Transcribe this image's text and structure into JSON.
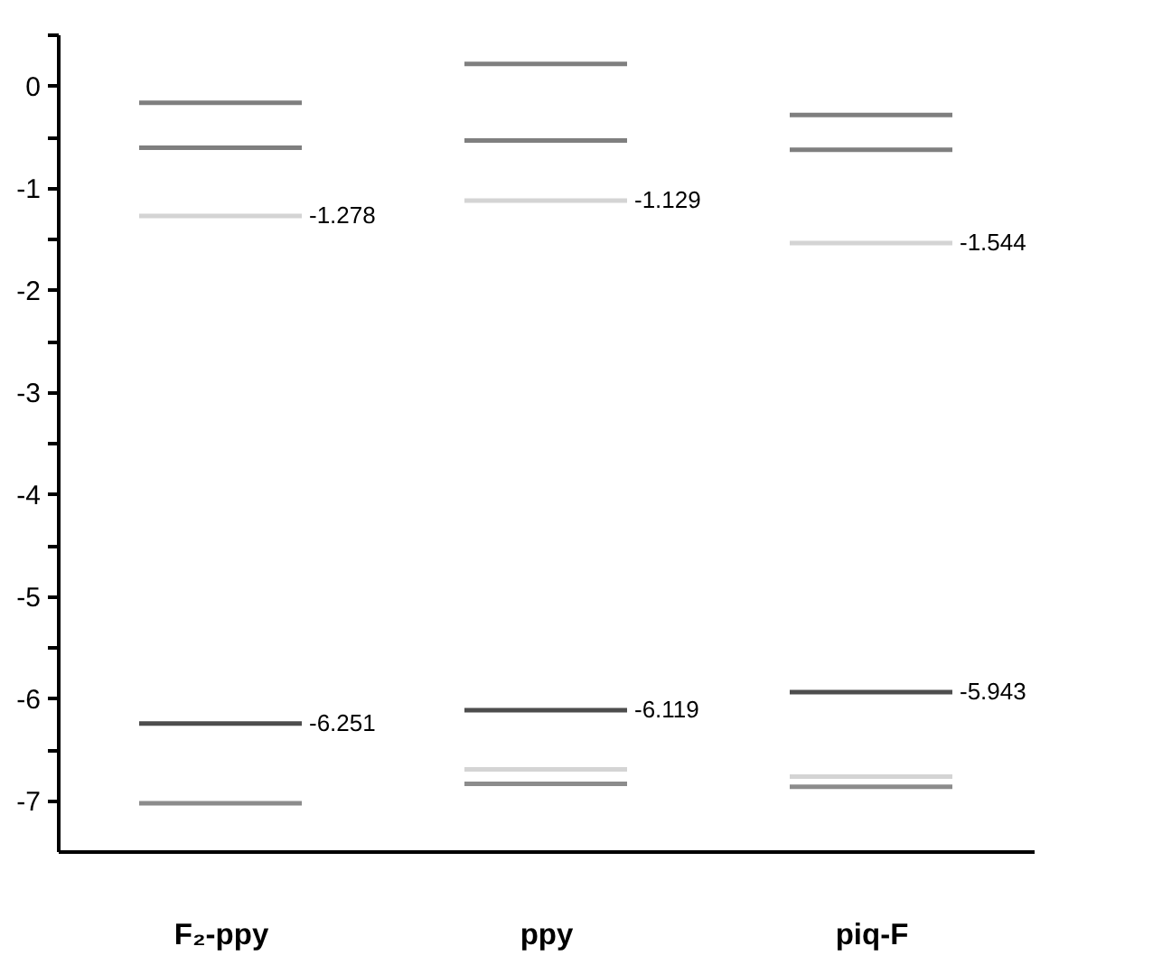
{
  "chart_data": {
    "type": "line",
    "categories": [
      null,
      "F₂-ppy",
      null,
      null,
      null,
      "ppy",
      null,
      null,
      null,
      "piq-F",
      null
    ],
    "series": [
      {
        "color": "#7f7f7f",
        "values": [
          -0.17,
          -0.17,
          -0.17,
          null,
          null,
          null,
          null,
          null,
          null,
          null,
          null
        ]
      },
      {
        "color": "#7f7f7f",
        "values": [
          -0.61,
          -0.61,
          -0.61,
          null,
          null,
          null,
          null,
          null,
          null,
          null,
          null
        ]
      },
      {
        "color": "#d4d4d4",
        "values": [
          -1.278,
          -1.278,
          -1.278,
          null,
          null,
          null,
          null,
          null,
          null,
          null,
          null
        ],
        "value_labels": [
          null,
          null,
          "-1.278",
          null,
          null,
          null,
          null,
          null,
          null,
          null,
          null
        ]
      },
      {
        "color": "#4d4d4d",
        "values": [
          -6.251,
          -6.251,
          -6.251,
          null,
          null,
          null,
          null,
          null,
          null,
          null,
          null
        ],
        "value_labels": [
          null,
          null,
          "-6.251",
          null,
          null,
          null,
          null,
          null,
          null,
          null,
          null
        ]
      },
      {
        "color": "#8c8c8c",
        "values": [
          -7.03,
          -7.03,
          -7.03,
          null,
          null,
          null,
          null,
          null,
          null,
          null,
          null
        ]
      },
      {
        "color": "#7f7f7f",
        "values": [
          null,
          null,
          null,
          null,
          0.21,
          0.21,
          0.21,
          null,
          null,
          null,
          null
        ]
      },
      {
        "color": "#7f7f7f",
        "values": [
          null,
          null,
          null,
          null,
          -0.54,
          -0.54,
          -0.54,
          null,
          null,
          null,
          null
        ]
      },
      {
        "color": "#d4d4d4",
        "values": [
          null,
          null,
          null,
          null,
          -1.129,
          -1.129,
          -1.129,
          null,
          null,
          null,
          null
        ],
        "value_labels": [
          null,
          null,
          null,
          null,
          null,
          null,
          "-1.129",
          null,
          null,
          null,
          null
        ]
      },
      {
        "color": "#4d4d4d",
        "values": [
          null,
          null,
          null,
          null,
          -6.119,
          -6.119,
          -6.119,
          null,
          null,
          null,
          null
        ],
        "value_labels": [
          null,
          null,
          null,
          null,
          null,
          null,
          "-6.119",
          null,
          null,
          null,
          null
        ]
      },
      {
        "color": "#d4d4d4",
        "values": [
          null,
          null,
          null,
          null,
          -6.7,
          -6.7,
          -6.7,
          null,
          null,
          null,
          null
        ]
      },
      {
        "color": "#8c8c8c",
        "values": [
          null,
          null,
          null,
          null,
          -6.84,
          -6.84,
          -6.84,
          null,
          null,
          null,
          null
        ]
      },
      {
        "color": "#7f7f7f",
        "values": [
          null,
          null,
          null,
          null,
          null,
          null,
          null,
          null,
          -0.29,
          -0.29,
          -0.29
        ]
      },
      {
        "color": "#7f7f7f",
        "values": [
          null,
          null,
          null,
          null,
          null,
          null,
          null,
          null,
          -0.63,
          -0.63,
          -0.63
        ]
      },
      {
        "color": "#d4d4d4",
        "values": [
          null,
          null,
          null,
          null,
          null,
          null,
          null,
          null,
          -1.544,
          -1.544,
          -1.544
        ],
        "value_labels": [
          null,
          null,
          null,
          null,
          null,
          null,
          null,
          null,
          null,
          null,
          "-1.544"
        ]
      },
      {
        "color": "#4d4d4d",
        "values": [
          null,
          null,
          null,
          null,
          null,
          null,
          null,
          null,
          -5.943,
          -5.943,
          -5.943
        ],
        "value_labels": [
          null,
          null,
          null,
          null,
          null,
          null,
          null,
          null,
          null,
          null,
          "-5.943"
        ]
      },
      {
        "color": "#d4d4d4",
        "values": [
          null,
          null,
          null,
          null,
          null,
          null,
          null,
          null,
          -6.77,
          -6.77,
          -6.77
        ]
      },
      {
        "color": "#8c8c8c",
        "values": [
          null,
          null,
          null,
          null,
          null,
          null,
          null,
          null,
          -6.87,
          -6.87,
          -6.87
        ]
      }
    ],
    "ylim": [
      -7.5,
      0.5
    ],
    "yticks": [
      {
        "value": 0.5,
        "label": null
      },
      0,
      {
        "value": -0.5,
        "label": null
      },
      -1,
      {
        "value": -1.5,
        "label": null
      },
      -2,
      {
        "value": -2.5,
        "label": null
      },
      -3,
      {
        "value": -3.5,
        "label": null
      },
      -4,
      {
        "value": -4.5,
        "label": null
      },
      -5,
      {
        "value": -5.5,
        "label": null
      },
      -6,
      {
        "value": -6.5,
        "label": null
      },
      -7
    ],
    "grid": false,
    "legend": false
  }
}
